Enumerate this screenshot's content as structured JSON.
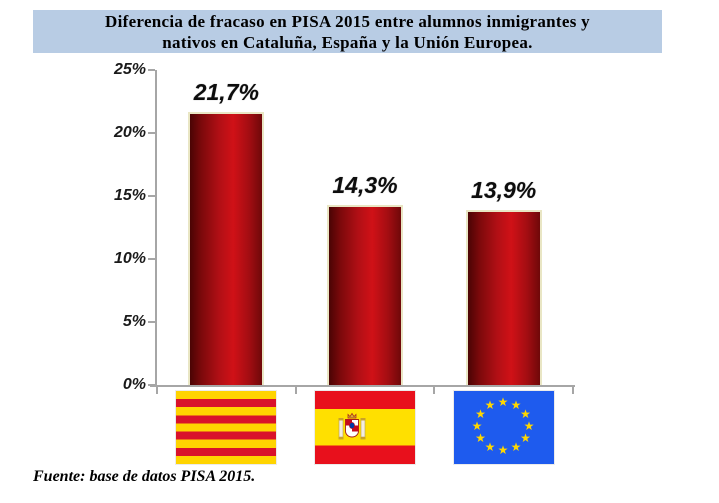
{
  "title": "Diferencia de fracaso en PISA 2015 entre alumnos inmigrantes y nativos en Cataluña, España y la Unión Europea.",
  "title_lines": [
    "Diferencia de fracaso en PISA 2015 entre alumnos inmigrantes y",
    "nativos en Cataluña, España y la Unión Europea."
  ],
  "source_note": "Fuente: base de datos PISA 2015.",
  "chart_data": {
    "type": "bar",
    "title": "Diferencia de fracaso en PISA 2015 entre alumnos inmigrantes y nativos en Cataluña, España y la Unión Europea.",
    "categories": [
      "Cataluña",
      "España",
      "Unión Europea"
    ],
    "category_keys": [
      "cataluna",
      "espana",
      "union-europea"
    ],
    "category_icons": [
      "catalonia-flag",
      "spain-flag",
      "eu-flag"
    ],
    "values": [
      21.7,
      14.3,
      13.9
    ],
    "value_labels": [
      "21,7%",
      "14,3%",
      "13,9%"
    ],
    "xlabel": "",
    "ylabel": "",
    "ylim": [
      0,
      25
    ],
    "ytick_step": 5,
    "ytick_labels_top_to_bottom": [
      "25%",
      "20%",
      "15%",
      "10%",
      "5%",
      "0%"
    ],
    "grid": false,
    "legend": false,
    "value_label_position": "above-bar",
    "bar_style": {
      "border_color": "#e9e6c4",
      "fill_gradient_stops": [
        [
          "#4a0404",
          "0%"
        ],
        [
          "#7c090b",
          "16%"
        ],
        [
          "#b00f15",
          "40%"
        ],
        [
          "#d01117",
          "60%"
        ],
        [
          "#a30d12",
          "82%"
        ],
        [
          "#6f0809",
          "100%"
        ]
      ]
    }
  },
  "colors": {
    "background": "#ffffff",
    "title_background": "#b8cce4",
    "title_text": "#000000",
    "axis": "#a6a6a6",
    "tick_label": "#1a1a1a",
    "bar_dark": "#4a0404",
    "bar_bright": "#d01117",
    "bar_border": "#e9e6c4",
    "catalonia_yellow": "#ffd400",
    "catalonia_red": "#d9122b",
    "spain_red": "#e8101c",
    "spain_yellow": "#ffe000",
    "eu_blue": "#1e5bee",
    "eu_star_yellow": "#ffd700"
  }
}
